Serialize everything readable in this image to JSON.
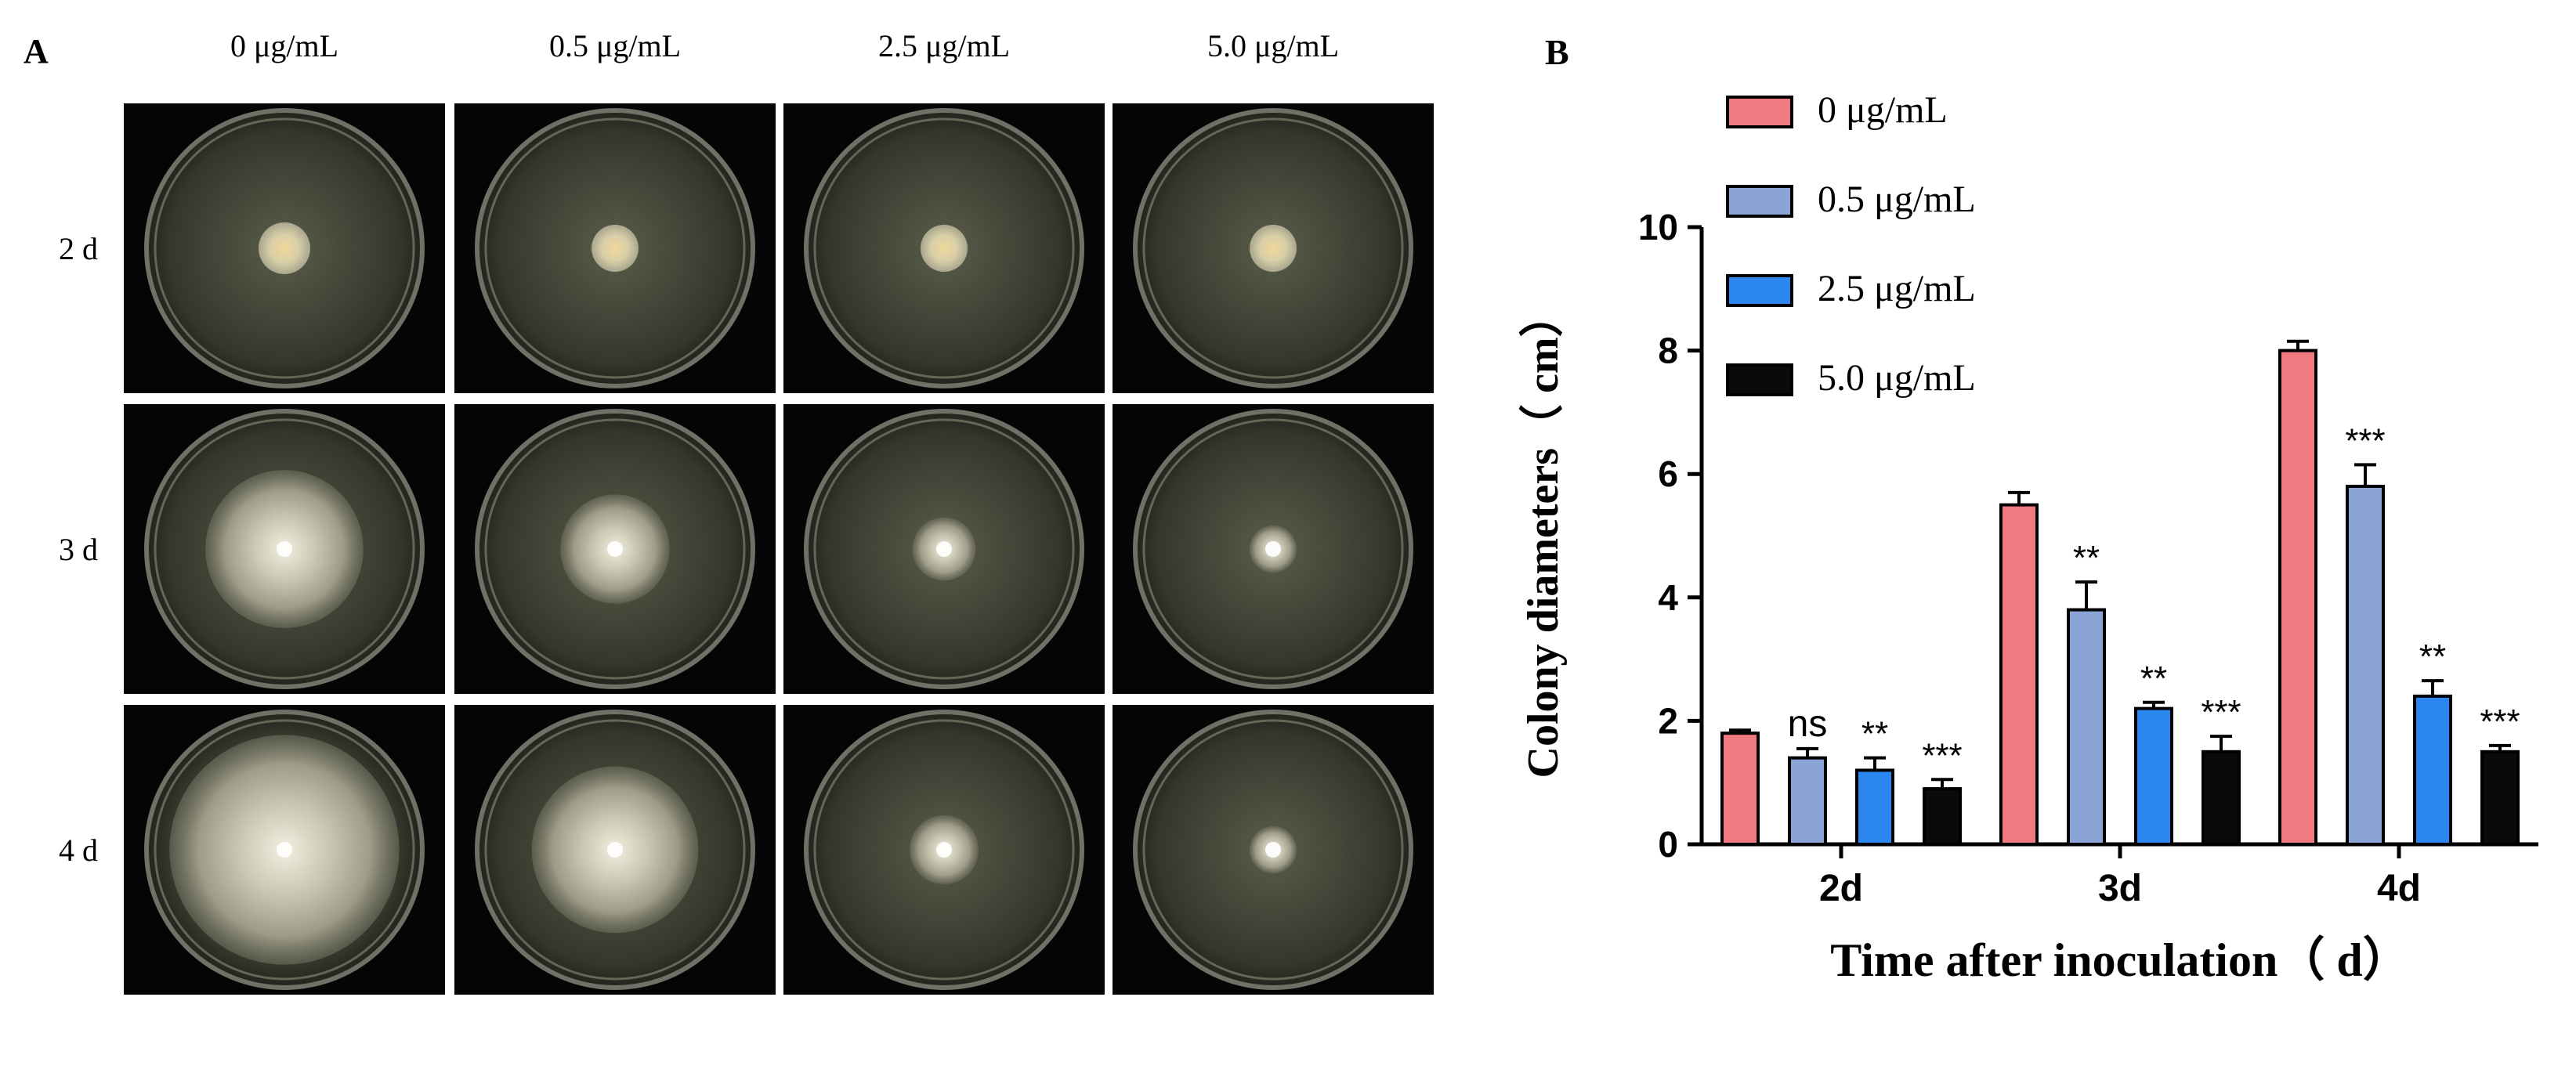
{
  "panel_a": {
    "label": "A",
    "concentrations": [
      "0 μg/mL",
      "0.5 μg/mL",
      "2.5 μg/mL",
      "5.0 μg/mL"
    ],
    "days": [
      "2 d",
      "3 d",
      "4 d"
    ],
    "colony_diameter_cm": [
      [
        1.8,
        1.4,
        1.2,
        0.9
      ],
      [
        5.5,
        3.8,
        2.2,
        1.5
      ],
      [
        8.0,
        5.8,
        2.4,
        1.5
      ]
    ]
  },
  "panel_b_label": "B",
  "chart_data": {
    "type": "bar",
    "categories": [
      "2d",
      "3d",
      "4d"
    ],
    "series": [
      {
        "name": "0 μg/mL",
        "color": "#f07a80",
        "values": [
          1.8,
          5.5,
          8.0
        ],
        "error": [
          0.05,
          0.2,
          0.15
        ],
        "significance": [
          "",
          "",
          ""
        ]
      },
      {
        "name": "0.5 μg/mL",
        "color": "#8aa4d6",
        "values": [
          1.4,
          3.8,
          5.8
        ],
        "error": [
          0.15,
          0.45,
          0.35
        ],
        "significance": [
          "ns",
          "**",
          "***"
        ]
      },
      {
        "name": "2.5 μg/mL",
        "color": "#2b86ef",
        "values": [
          1.2,
          2.2,
          2.4
        ],
        "error": [
          0.2,
          0.1,
          0.25
        ],
        "significance": [
          "**",
          "**",
          "**"
        ]
      },
      {
        "name": "5.0 μg/mL",
        "color": "#0a0a0a",
        "values": [
          0.9,
          1.5,
          1.5
        ],
        "error": [
          0.15,
          0.25,
          0.1
        ],
        "significance": [
          "***",
          "***",
          "***"
        ]
      }
    ],
    "xlabel": "Time after inoculation（ d）",
    "ylabel": "Colony diameters（ cm）",
    "ylim": [
      0,
      10
    ],
    "yticks": [
      0,
      2,
      4,
      6,
      8,
      10
    ],
    "legend_position": "top-left",
    "grid": false
  }
}
